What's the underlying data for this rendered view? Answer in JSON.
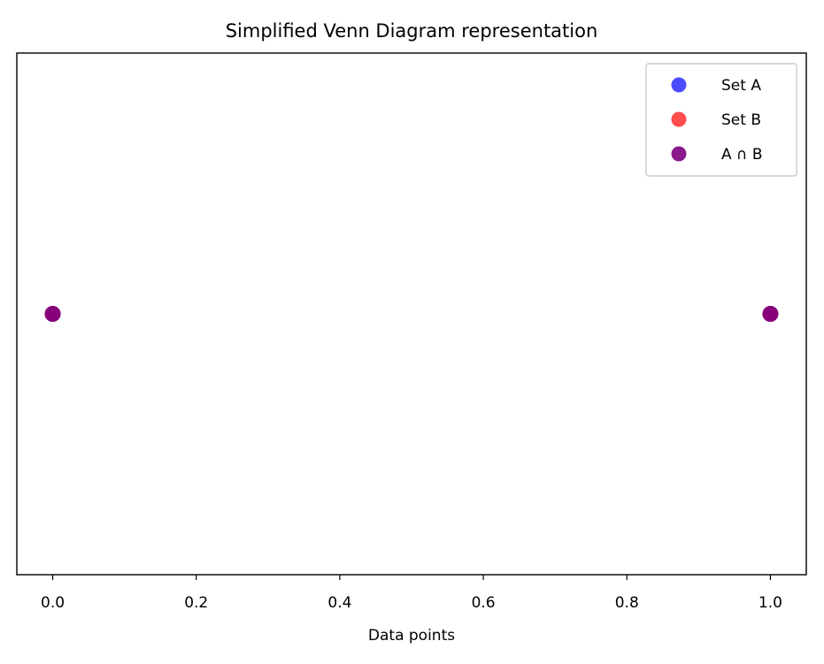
{
  "chart_data": {
    "type": "scatter",
    "title": "Simplified Venn Diagram representation",
    "xlabel": "Data points",
    "ylabel": "",
    "xlim": [
      -0.05,
      1.05
    ],
    "ylim": [
      -1,
      1
    ],
    "xticks": [
      "0.0",
      "0.2",
      "0.4",
      "0.6",
      "0.8",
      "1.0"
    ],
    "xtick_values": [
      0,
      0.2,
      0.4,
      0.6,
      0.8,
      1.0
    ],
    "yticks_visible": false,
    "grid": false,
    "legend_position": "top-right",
    "series": [
      {
        "name": "Set A",
        "color": "#0000ff",
        "alpha": 0.7,
        "points": [
          {
            "x": 0,
            "y": 0
          },
          {
            "x": 1,
            "y": 0
          }
        ]
      },
      {
        "name": "Set B",
        "color": "#ff0000",
        "alpha": 0.7,
        "points": [
          {
            "x": 0,
            "y": 0
          },
          {
            "x": 1,
            "y": 0
          }
        ]
      },
      {
        "name": "A ∩ B",
        "color": "#800080",
        "alpha": 0.9,
        "points": [
          {
            "x": 0,
            "y": 0
          },
          {
            "x": 1,
            "y": 0
          }
        ]
      }
    ]
  }
}
